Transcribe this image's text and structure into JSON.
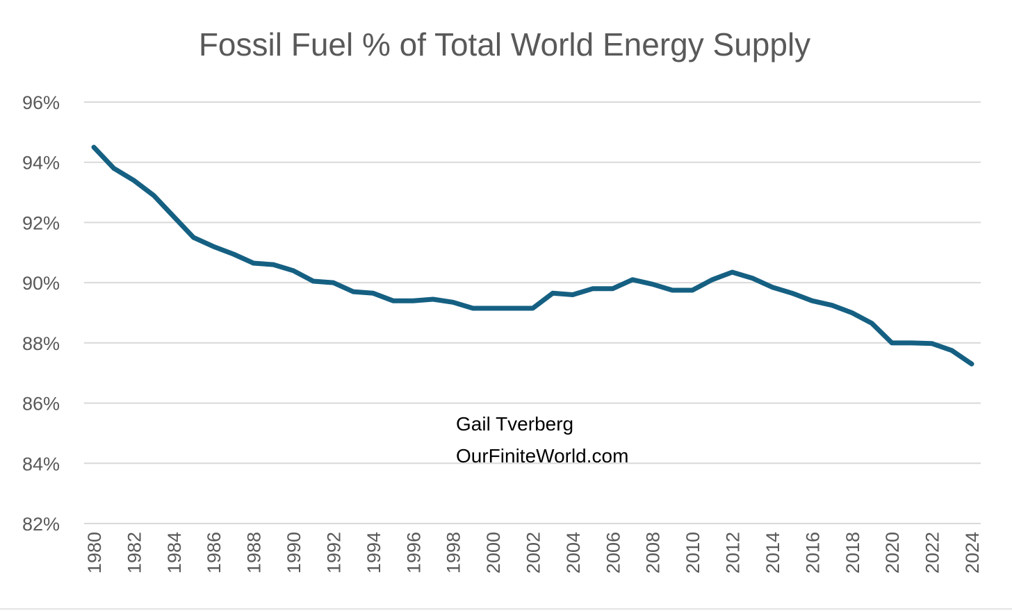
{
  "chart_data": {
    "type": "line",
    "title": "Fossil Fuel % of Total World Energy Supply",
    "xlabel": "",
    "ylabel": "",
    "ylim": [
      82,
      96
    ],
    "y_ticks": [
      96,
      94,
      92,
      90,
      88,
      86,
      84,
      82
    ],
    "y_tick_labels": [
      "96%",
      "94%",
      "92%",
      "90%",
      "88%",
      "86%",
      "84%",
      "82%"
    ],
    "x": [
      1980,
      1981,
      1982,
      1983,
      1984,
      1985,
      1986,
      1987,
      1988,
      1989,
      1990,
      1991,
      1992,
      1993,
      1994,
      1995,
      1996,
      1997,
      1998,
      1999,
      2000,
      2001,
      2002,
      2003,
      2004,
      2005,
      2006,
      2007,
      2008,
      2009,
      2010,
      2011,
      2012,
      2013,
      2014,
      2015,
      2016,
      2017,
      2018,
      2019,
      2020,
      2021,
      2022,
      2023,
      2024
    ],
    "x_tick_labels": [
      "1980",
      "1982",
      "1984",
      "1986",
      "1988",
      "1990",
      "1992",
      "1994",
      "1996",
      "1998",
      "2000",
      "2002",
      "2004",
      "2006",
      "2008",
      "2010",
      "2012",
      "2014",
      "2016",
      "2018",
      "2020",
      "2022",
      "2024"
    ],
    "series": [
      {
        "values": [
          94.5,
          93.8,
          93.4,
          92.9,
          92.2,
          91.5,
          91.2,
          90.95,
          90.65,
          90.6,
          90.4,
          90.05,
          90.0,
          89.7,
          89.65,
          89.4,
          89.4,
          89.45,
          89.35,
          89.15,
          89.15,
          89.15,
          89.15,
          89.65,
          89.6,
          89.8,
          89.8,
          90.1,
          89.95,
          89.75,
          89.75,
          90.1,
          90.35,
          90.15,
          89.85,
          89.65,
          89.4,
          89.25,
          89.0,
          88.65,
          88.0,
          88.0,
          87.98,
          87.75,
          87.3
        ],
        "color": "#156082"
      }
    ],
    "grid": true,
    "legend": "none",
    "annotation_lines": [
      "Gail Tverberg",
      "OurFiniteWorld.com"
    ]
  }
}
